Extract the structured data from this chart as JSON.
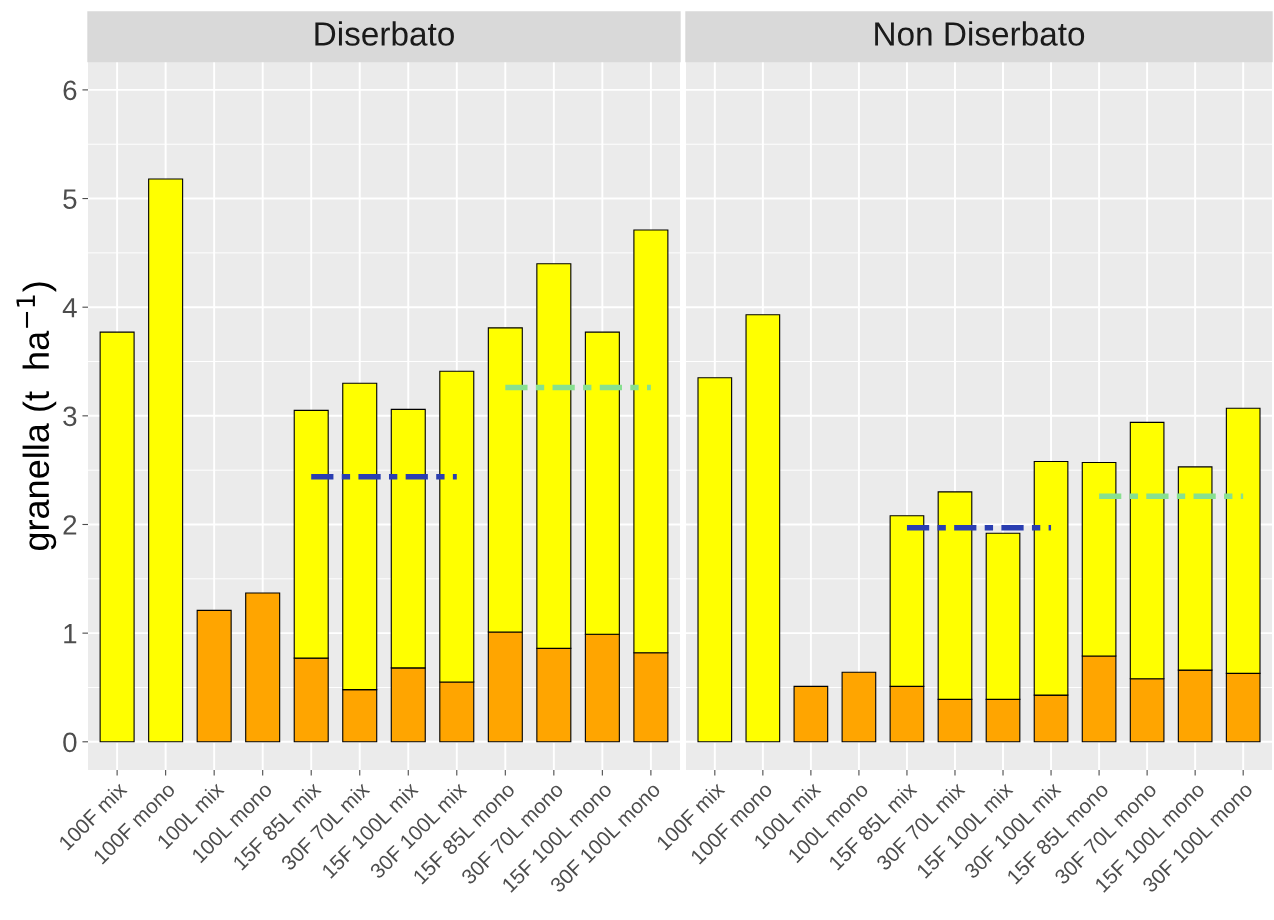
{
  "chart_data": [
    {
      "type": "bar",
      "title": "Diserbato",
      "ylabel": "granella (t  ha$^{−1}$)",
      "stacked": true,
      "grid": true,
      "legend": false,
      "categories": [
        "100F mix",
        "100F mono",
        "100L mix",
        "100L mono",
        "15F 85L mix",
        "30F 70L mix",
        "15F 100L mix",
        "30F 100L mix",
        "15F 85L mono",
        "30F 70L mono",
        "15F 100L mono",
        "30F 100L mono"
      ],
      "ylim": [
        -0.26,
        6.26
      ],
      "yticks": [
        0,
        1,
        2,
        3,
        4,
        5,
        6
      ],
      "series": [
        {
          "color": "#ffa500",
          "values": [
            null,
            null,
            1.21,
            1.37,
            0.77,
            0.48,
            0.68,
            0.55,
            1.01,
            0.86,
            0.99,
            0.82
          ]
        },
        {
          "color": "#ffff00",
          "values": [
            3.77,
            5.18,
            null,
            null,
            2.28,
            2.82,
            2.38,
            2.86,
            2.8,
            3.54,
            2.78,
            3.89
          ]
        },
        {
          "type": "line",
          "color": "#2a3eb1",
          "line_style": "dashed",
          "values": [
            null,
            null,
            null,
            null,
            2.44,
            2.44,
            2.44,
            2.44,
            null,
            null,
            null,
            null
          ]
        },
        {
          "type": "line",
          "color": "#88e08f",
          "line_style": "dashed",
          "values": [
            null,
            null,
            null,
            null,
            null,
            null,
            null,
            null,
            3.26,
            3.26,
            3.26,
            3.26
          ]
        }
      ]
    },
    {
      "type": "bar",
      "title": "Non Diserbato",
      "stacked": true,
      "grid": true,
      "legend": false,
      "tick_labels": "x",
      "categories": [
        "100F mix",
        "100F mono",
        "100L mix",
        "100L mono",
        "15F 85L mix",
        "30F 70L mix",
        "15F 100L mix",
        "30F 100L mix",
        "15F 85L mono",
        "30F 70L mono",
        "15F 100L mono",
        "30F 100L mono"
      ],
      "ylim": [
        -0.26,
        6.26
      ],
      "yticks": [
        0,
        1,
        2,
        3,
        4,
        5,
        6
      ],
      "series": [
        {
          "color": "#ffa500",
          "values": [
            null,
            null,
            0.51,
            0.64,
            0.51,
            0.39,
            0.39,
            0.43,
            0.79,
            0.58,
            0.66,
            0.63
          ]
        },
        {
          "color": "#ffff00",
          "values": [
            3.35,
            3.93,
            null,
            null,
            1.57,
            1.91,
            1.53,
            2.15,
            1.78,
            2.36,
            1.87,
            2.44
          ]
        },
        {
          "type": "line",
          "color": "#2a3eb1",
          "line_style": "dashed",
          "values": [
            null,
            null,
            null,
            null,
            1.97,
            1.97,
            1.97,
            1.97,
            null,
            null,
            null,
            null
          ]
        },
        {
          "type": "line",
          "color": "#88e08f",
          "line_style": "dashed",
          "values": [
            null,
            null,
            null,
            null,
            null,
            null,
            null,
            null,
            2.26,
            2.26,
            2.26,
            2.26
          ]
        }
      ]
    }
  ]
}
